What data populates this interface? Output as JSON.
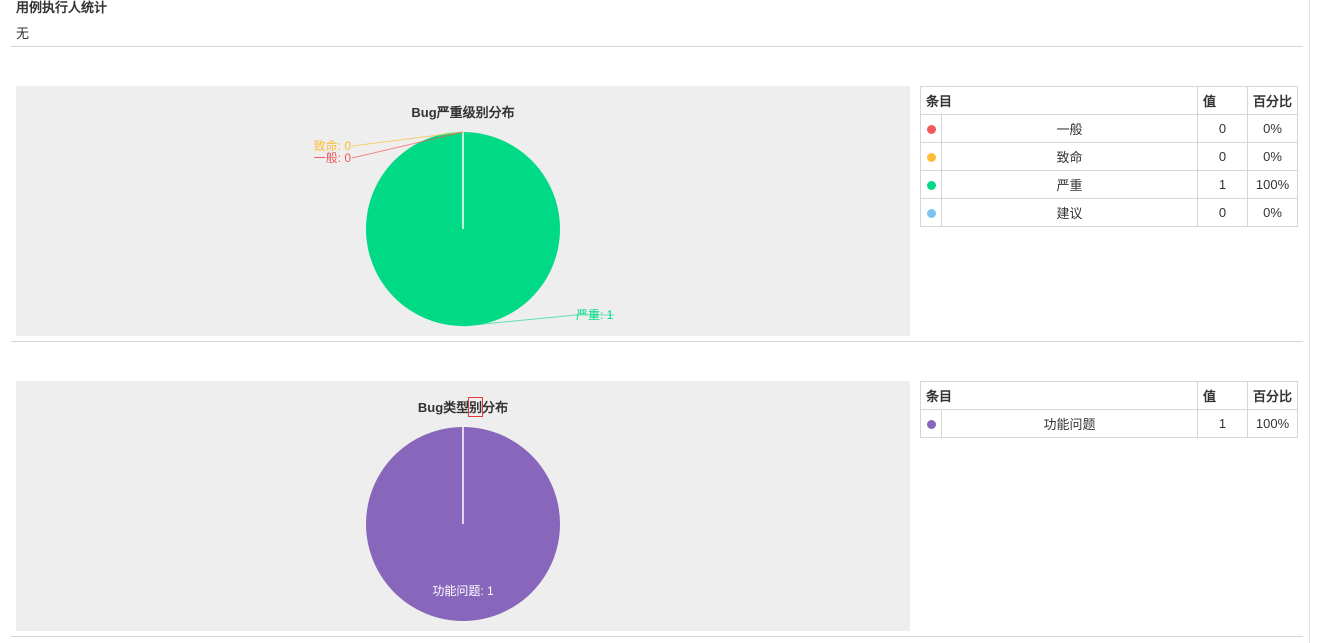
{
  "section": {
    "title": "用例执行人统计",
    "empty_text": "无"
  },
  "table_headers": {
    "item": "条目",
    "value": "值",
    "percent": "百分比"
  },
  "chart_data": [
    {
      "type": "pie",
      "title": "Bug严重级别分布",
      "slices": [
        {
          "label": "一般",
          "value": 0,
          "percent": "0%",
          "color": "#f25a5a",
          "pie_label": "一般: 0"
        },
        {
          "label": "致命",
          "value": 0,
          "percent": "0%",
          "color": "#fdbd35",
          "pie_label": "致命: 0"
        },
        {
          "label": "严重",
          "value": 1,
          "percent": "100%",
          "color": "#00d985",
          "pie_label": "严重: 1"
        },
        {
          "label": "建议",
          "value": 0,
          "percent": "0%",
          "color": "#7ec2f3",
          "pie_label": ""
        }
      ]
    },
    {
      "type": "pie",
      "title": "Bug类型别分布",
      "slices": [
        {
          "label": "功能问题",
          "value": 1,
          "percent": "100%",
          "color": "#8766bb",
          "pie_label": "功能问题: 1"
        }
      ]
    }
  ]
}
